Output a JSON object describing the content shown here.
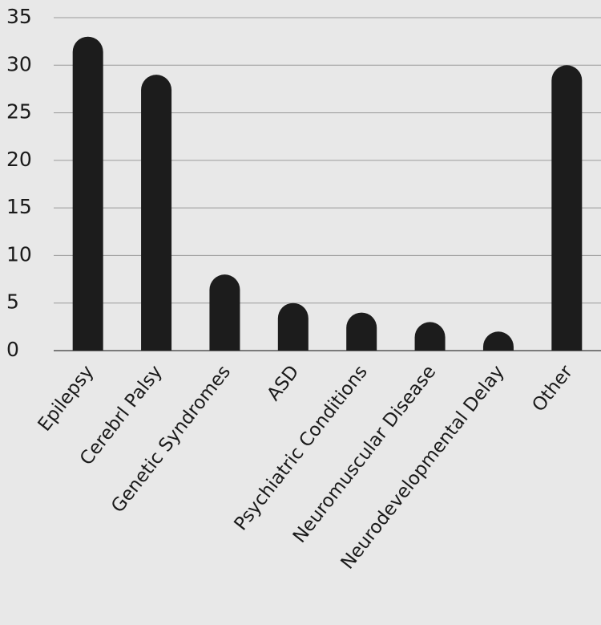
{
  "chart_data": {
    "type": "bar",
    "categories": [
      "Epilepsy",
      "Cerebrl Palsy",
      "Genetic Syndromes",
      "ASD",
      "Psychiatric Conditions",
      "Neuromuscular Disease",
      "Neurodevelopmental Delay",
      "Other"
    ],
    "values": [
      33,
      29,
      8,
      5,
      4,
      3,
      2,
      30
    ],
    "color": "#1c1c1c",
    "ylim": [
      0,
      35
    ],
    "yticks": [
      0,
      5,
      10,
      15,
      20,
      25,
      30,
      35
    ],
    "grid": true
  }
}
